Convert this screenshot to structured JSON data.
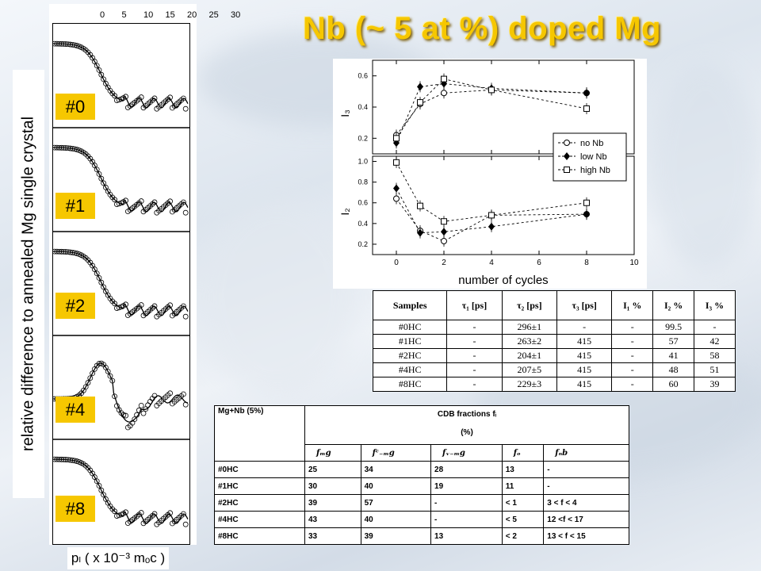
{
  "title": "Nb (~ 5 at %) doped Mg",
  "left_plot": {
    "ylabel": "relative difference to annealed Mg single crystal",
    "xlabel": "pₗ ( x 10⁻³ mₒc )",
    "top_ticks": [
      "0",
      "5",
      "10",
      "15",
      "20",
      "25",
      "30"
    ],
    "tags": [
      "#0",
      "#1",
      "#2",
      "#4",
      "#8"
    ]
  },
  "chart_data": [
    {
      "type": "scatter",
      "ylabel": "I₃",
      "xlim": [
        -1,
        10
      ],
      "ylim": [
        0.1,
        0.7
      ],
      "yticks": [
        "0.2",
        "0.4",
        "0.6"
      ],
      "x": [
        0,
        1,
        2,
        4,
        8
      ],
      "series": [
        {
          "name": "no Nb",
          "marker": "circle-open",
          "values": [
            0.22,
            0.42,
            0.49,
            0.51,
            0.49
          ]
        },
        {
          "name": "low Nb",
          "marker": "diamond-filled",
          "values": [
            0.17,
            0.53,
            0.55,
            0.52,
            0.49
          ]
        },
        {
          "name": "high Nb",
          "marker": "square-open",
          "values": [
            0.2,
            0.43,
            0.58,
            0.51,
            0.39
          ]
        }
      ]
    },
    {
      "type": "scatter",
      "ylabel": "I₂",
      "xlabel": "number of cycles",
      "xlim": [
        -1,
        10
      ],
      "ylim": [
        0.1,
        1.05
      ],
      "xticks": [
        "0",
        "2",
        "4",
        "6",
        "8",
        "10"
      ],
      "yticks": [
        "0.2",
        "0.4",
        "0.6",
        "0.8",
        "1.0"
      ],
      "x": [
        0,
        1,
        2,
        4,
        8
      ],
      "series": [
        {
          "name": "no Nb",
          "marker": "circle-open",
          "values": [
            0.64,
            0.33,
            0.23,
            0.48,
            0.49
          ]
        },
        {
          "name": "low Nb",
          "marker": "diamond-filled",
          "values": [
            0.74,
            0.31,
            0.32,
            0.37,
            0.49
          ]
        },
        {
          "name": "high Nb",
          "marker": "square-open",
          "values": [
            0.99,
            0.57,
            0.42,
            0.48,
            0.6
          ]
        }
      ]
    }
  ],
  "legend": [
    "no Nb",
    "low Nb",
    "high Nb"
  ],
  "table1": {
    "header": [
      "Samples",
      "τ₁ [ps]",
      "τ₂ [ps]",
      "τ₃ [ps]",
      "I₁ %",
      "I₂ %",
      "I₃ %"
    ],
    "rows": [
      [
        "#0HC",
        "-",
        "296±1",
        "-",
        "-",
        "99.5",
        "-"
      ],
      [
        "#1HC",
        "-",
        "263±2",
        "415",
        "-",
        "57",
        "42"
      ],
      [
        "#2HC",
        "-",
        "204±1",
        "415",
        "-",
        "41",
        "58"
      ],
      [
        "#4HC",
        "-",
        "207±5",
        "415",
        "-",
        "48",
        "51"
      ],
      [
        "#8HC",
        "-",
        "229±3",
        "415",
        "-",
        "60",
        "39"
      ]
    ]
  },
  "table2": {
    "corner": "Mg+Nb (5%)",
    "group_title": "CDB fractions fᵢ",
    "group_unit": "(%)",
    "subheaders": [
      "fₘg",
      "fᶜ₋ₘg",
      "fᵥ₋ₘg",
      "fₒ",
      "fₙb"
    ],
    "rows": [
      [
        "#0HC",
        "25",
        "34",
        "28",
        "13",
        "-"
      ],
      [
        "#1HC",
        "30",
        "40",
        "19",
        "11",
        "-"
      ],
      [
        "#2HC",
        "39",
        "57",
        "-",
        "< 1",
        "3 < f < 4"
      ],
      [
        "#4HC",
        "43",
        "40",
        "-",
        "< 5",
        "12 <f < 17"
      ],
      [
        "#8HC",
        "33",
        "39",
        "13",
        "< 2",
        "13 < f < 15"
      ]
    ]
  }
}
